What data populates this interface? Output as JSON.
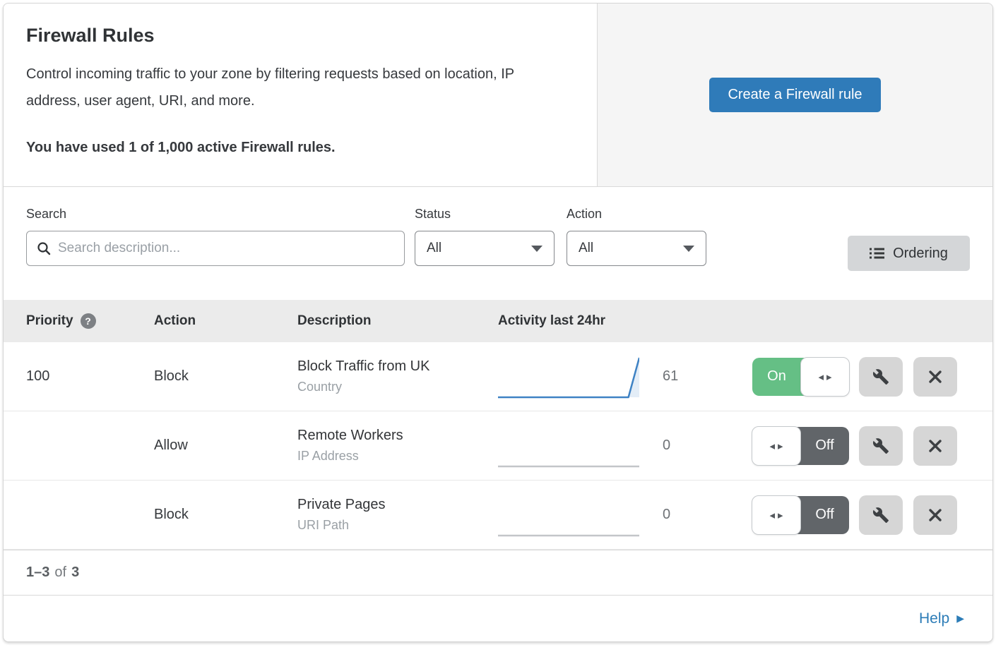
{
  "header": {
    "title": "Firewall Rules",
    "description": "Control incoming traffic to your zone by filtering requests based on location, IP address, user agent, URI, and more.",
    "usage_note": "You have used 1 of 1,000 active Firewall rules.",
    "create_button_label": "Create a Firewall rule"
  },
  "filters": {
    "search_label": "Search",
    "search_placeholder": "Search description...",
    "search_value": "",
    "status_label": "Status",
    "status_value": "All",
    "action_label": "Action",
    "action_value": "All",
    "ordering_label": "Ordering"
  },
  "table": {
    "columns": {
      "priority": "Priority",
      "action": "Action",
      "description": "Description",
      "activity": "Activity last 24hr"
    },
    "rows": [
      {
        "priority": "100",
        "action": "Block",
        "description": "Block Traffic from UK",
        "rule_type": "Country",
        "activity_count": "61",
        "enabled": true,
        "toggle_label": "On",
        "sparkline": [
          0,
          0,
          0,
          0,
          0,
          0,
          0,
          0,
          0,
          0,
          0,
          0,
          0,
          61
        ]
      },
      {
        "priority": "",
        "action": "Allow",
        "description": "Remote Workers",
        "rule_type": "IP Address",
        "activity_count": "0",
        "enabled": false,
        "toggle_label": "Off",
        "sparkline": [
          0,
          0,
          0,
          0,
          0,
          0,
          0,
          0,
          0,
          0,
          0,
          0,
          0,
          0
        ]
      },
      {
        "priority": "",
        "action": "Block",
        "description": "Private Pages",
        "rule_type": "URI Path",
        "activity_count": "0",
        "enabled": false,
        "toggle_label": "Off",
        "sparkline": [
          0,
          0,
          0,
          0,
          0,
          0,
          0,
          0,
          0,
          0,
          0,
          0,
          0,
          0
        ]
      }
    ]
  },
  "chart_data": {
    "type": "area",
    "note": "mini sparklines, one per rule, activity over last 24hr",
    "series": [
      {
        "name": "Block Traffic from UK",
        "values": [
          0,
          0,
          0,
          0,
          0,
          0,
          0,
          0,
          0,
          0,
          0,
          0,
          0,
          61
        ]
      },
      {
        "name": "Remote Workers",
        "values": [
          0,
          0,
          0,
          0,
          0,
          0,
          0,
          0,
          0,
          0,
          0,
          0,
          0,
          0
        ]
      },
      {
        "name": "Private Pages",
        "values": [
          0,
          0,
          0,
          0,
          0,
          0,
          0,
          0,
          0,
          0,
          0,
          0,
          0,
          0
        ]
      }
    ]
  },
  "footer": {
    "range": "1–3",
    "of_word": "of",
    "total": "3",
    "help_label": "Help"
  },
  "colors": {
    "accent_blue": "#2f7bb9",
    "help_blue": "#2c7cb7",
    "toggle_on_green": "#65bf85",
    "toggle_off_gray": "#616569",
    "spark_line_active": "#3e82c4",
    "spark_line_inactive": "#c3c6c9",
    "spark_fill": "#e3edf7",
    "header_panel_gray": "#f5f5f5",
    "table_header_gray": "#ebebeb"
  }
}
